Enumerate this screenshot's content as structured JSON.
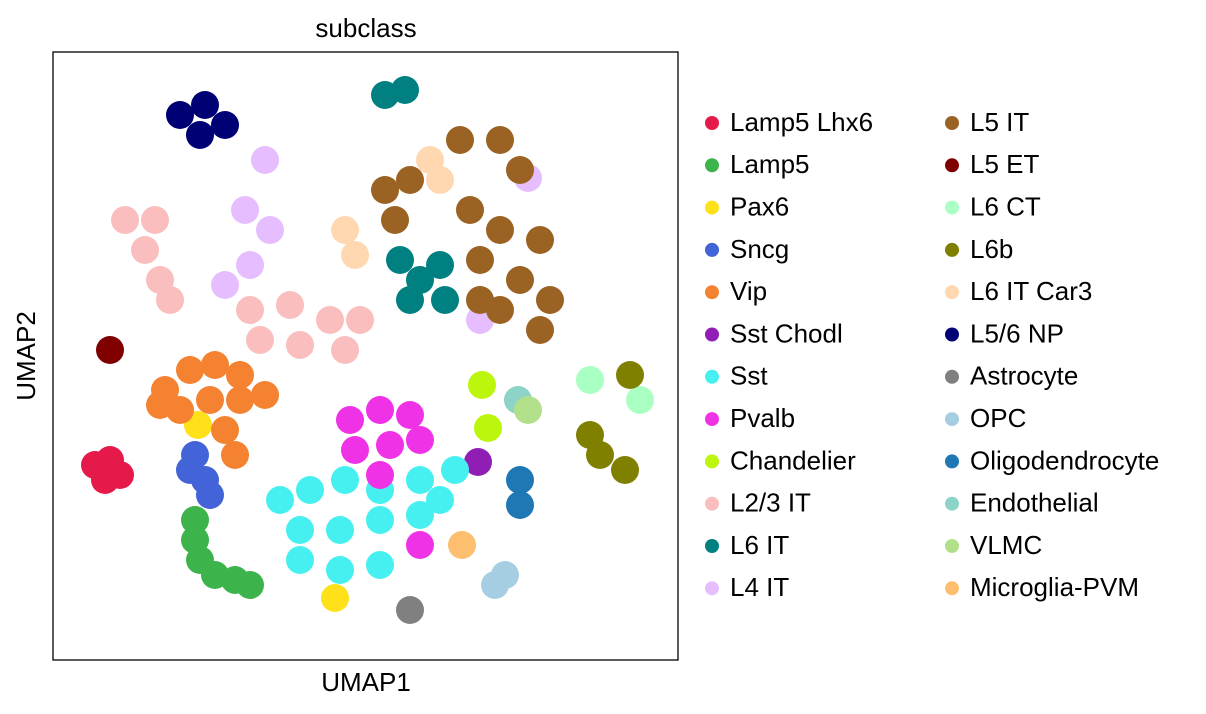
{
  "chart_data": {
    "type": "scatter",
    "title": "subclass",
    "x_label": "UMAP1",
    "y_label": "UMAP2",
    "xlim": [
      0,
      625
    ],
    "ylim": [
      0,
      608
    ],
    "series": [
      {
        "name": "Lamp5 Lhx6",
        "color": "#e6194b",
        "x": [
          42,
          57,
          67,
          52
        ],
        "y": [
          195,
          200,
          185,
          180
        ]
      },
      {
        "name": "Lamp5",
        "color": "#3cb44b",
        "x": [
          142,
          142,
          147,
          162,
          182,
          197
        ],
        "y": [
          140,
          120,
          100,
          85,
          80,
          75
        ]
      },
      {
        "name": "Pax6",
        "color": "#ffe119",
        "x": [
          145,
          282
        ],
        "y": [
          235,
          62
        ]
      },
      {
        "name": "Sncg",
        "color": "#4363d8",
        "x": [
          142,
          137,
          152,
          157
        ],
        "y": [
          205,
          190,
          180,
          165
        ]
      },
      {
        "name": "Vip",
        "color": "#f58231",
        "x": [
          112,
          137,
          162,
          187,
          107,
          127,
          157,
          187,
          212,
          172,
          182
        ],
        "y": [
          270,
          290,
          295,
          285,
          255,
          250,
          260,
          260,
          265,
          230,
          205
        ]
      },
      {
        "name": "Sst Chodl",
        "color": "#911eb4",
        "x": [
          425
        ],
        "y": [
          198
        ]
      },
      {
        "name": "Sst",
        "color": "#46f0f0",
        "x": [
          227,
          257,
          292,
          327,
          367,
          402,
          247,
          287,
          327,
          367,
          247,
          287,
          327,
          387
        ],
        "y": [
          160,
          170,
          180,
          170,
          180,
          190,
          130,
          130,
          140,
          145,
          100,
          90,
          95,
          160
        ]
      },
      {
        "name": "Pvalb",
        "color": "#f032e6",
        "x": [
          297,
          327,
          357,
          302,
          337,
          367,
          327,
          367
        ],
        "y": [
          240,
          250,
          245,
          210,
          215,
          220,
          185,
          115
        ]
      },
      {
        "name": "Chandelier",
        "color": "#bcf60c",
        "x": [
          429,
          435
        ],
        "y": [
          275,
          232
        ]
      },
      {
        "name": "L2/3 IT",
        "color": "#fabebe",
        "x": [
          72,
          102,
          92,
          107,
          117,
          197,
          237,
          277,
          307,
          207,
          247,
          292
        ],
        "y": [
          440,
          440,
          410,
          380,
          360,
          350,
          355,
          340,
          340,
          320,
          315,
          310
        ]
      },
      {
        "name": "L6 IT",
        "color": "#008080",
        "x": [
          332,
          352,
          347,
          367,
          387,
          357,
          392
        ],
        "y": [
          565,
          570,
          400,
          380,
          395,
          360,
          360
        ]
      },
      {
        "name": "L4 IT",
        "color": "#e6beff",
        "x": [
          212,
          192,
          217,
          197,
          172,
          427,
          475
        ],
        "y": [
          500,
          450,
          430,
          395,
          375,
          340,
          482
        ]
      },
      {
        "name": "L5 IT",
        "color": "#9a6324",
        "x": [
          332,
          342,
          357,
          407,
          447,
          467,
          417,
          447,
          487,
          427,
          467,
          497,
          447,
          487,
          427
        ],
        "y": [
          470,
          440,
          480,
          520,
          520,
          490,
          450,
          430,
          420,
          400,
          380,
          360,
          350,
          330,
          360
        ]
      },
      {
        "name": "L5 ET",
        "color": "#800000",
        "x": [
          57
        ],
        "y": [
          310
        ]
      },
      {
        "name": "L6 CT",
        "color": "#aaffc3",
        "x": [
          537,
          587
        ],
        "y": [
          280,
          260
        ]
      },
      {
        "name": "L6b",
        "color": "#808000",
        "x": [
          547,
          537,
          572,
          577
        ],
        "y": [
          205,
          225,
          190,
          285
        ]
      },
      {
        "name": "L6 IT Car3",
        "color": "#ffd8b1",
        "x": [
          292,
          302,
          377,
          387
        ],
        "y": [
          430,
          405,
          500,
          480
        ]
      },
      {
        "name": "L5/6 NP",
        "color": "#000075",
        "x": [
          127,
          152,
          172,
          147
        ],
        "y": [
          545,
          555,
          535,
          525
        ]
      },
      {
        "name": "Astrocyte",
        "color": "#808080",
        "x": [
          357
        ],
        "y": [
          50
        ]
      },
      {
        "name": "OPC",
        "color": "#a6cee3",
        "x": [
          452,
          442
        ],
        "y": [
          85,
          75
        ]
      },
      {
        "name": "Oligodendrocyte",
        "color": "#1f78b4",
        "x": [
          467,
          467
        ],
        "y": [
          180,
          155
        ]
      },
      {
        "name": "Endothelial",
        "color": "#8dd3c7",
        "x": [
          465
        ],
        "y": [
          260
        ]
      },
      {
        "name": "VLMC",
        "color": "#b2df8a",
        "x": [
          475
        ],
        "y": [
          250
        ]
      },
      {
        "name": "Microglia-PVM",
        "color": "#fdbf6f",
        "x": [
          409
        ],
        "y": [
          115
        ]
      }
    ]
  }
}
